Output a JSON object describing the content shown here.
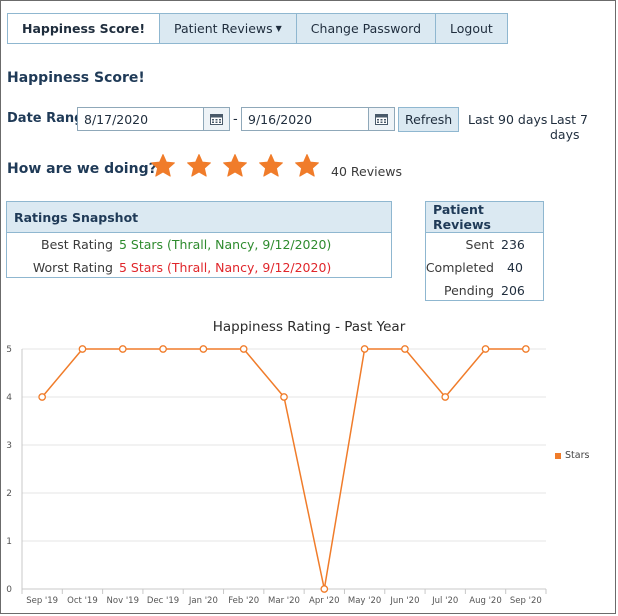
{
  "nav": {
    "items": [
      {
        "label": "Happiness Score!",
        "active": true
      },
      {
        "label": "Patient Reviews",
        "dropdown": true
      },
      {
        "label": "Change Password"
      },
      {
        "label": "Logout"
      }
    ]
  },
  "page_title": "Happiness Score!",
  "date_range": {
    "label": "Date Range",
    "start": "8/17/2020",
    "end": "9/16/2020",
    "separator": "-",
    "refresh_label": "Refresh",
    "quick_90": "Last 90 days",
    "quick_7": "Last 7 days"
  },
  "summary": {
    "question": "How are we doing?",
    "stars": 5,
    "review_count": "40 Reviews",
    "star_color": "#f07c2a"
  },
  "ratings_snapshot": {
    "title": "Ratings Snapshot",
    "best_label": "Best Rating",
    "best_value": "5 Stars (Thrall, Nancy, 9/12/2020)",
    "worst_label": "Worst Rating",
    "worst_value": "5 Stars (Thrall, Nancy, 9/12/2020)"
  },
  "patient_reviews": {
    "title": "Patient Reviews",
    "sent_label": "Sent",
    "sent_value": "236",
    "completed_label": "Completed",
    "completed_value": "40",
    "pending_label": "Pending",
    "pending_value": "206"
  },
  "chart_data": {
    "type": "line",
    "title": "Happiness Rating - Past Year",
    "categories": [
      "Sep '19",
      "Oct '19",
      "Nov '19",
      "Dec '19",
      "Jan '20",
      "Feb '20",
      "Mar '20",
      "Apr '20",
      "May '20",
      "Jun '20",
      "Jul '20",
      "Aug '20",
      "Sep '20"
    ],
    "series": [
      {
        "name": "Stars",
        "values": [
          4,
          5,
          5,
          5,
          5,
          5,
          4,
          0,
          5,
          5,
          4,
          5,
          5
        ],
        "color": "#f07c2a"
      }
    ],
    "ylim": [
      0,
      5
    ],
    "yticks": [
      "0",
      "1",
      "2",
      "3",
      "4",
      "5"
    ],
    "grid": true,
    "legend": "right"
  }
}
